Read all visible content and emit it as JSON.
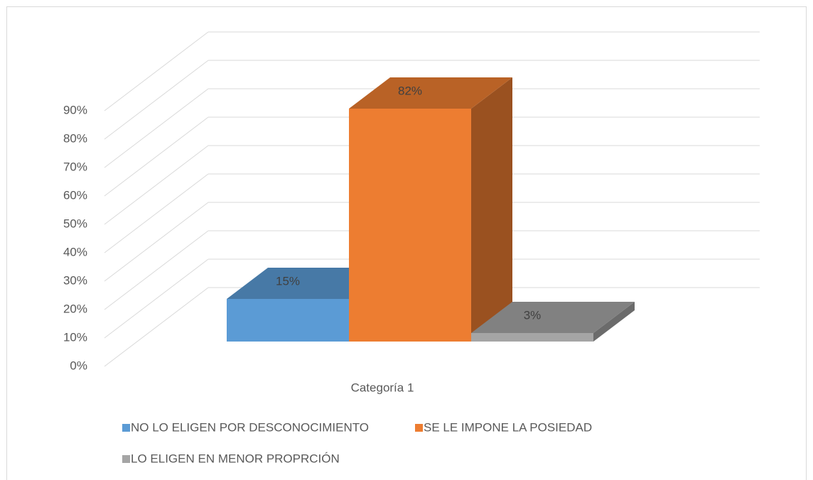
{
  "chart_data": {
    "type": "bar3d",
    "categories": [
      "Categoría 1"
    ],
    "series": [
      {
        "name": "NO LO ELIGEN POR DESCONOCIMIENTO",
        "color": "#5b9bd5",
        "values": [
          15
        ],
        "value_labels": [
          "15%"
        ]
      },
      {
        "name": "SE LE IMPONE LA POSIEDAD",
        "color": "#ed7d31",
        "values": [
          82
        ],
        "value_labels": [
          "82%"
        ]
      },
      {
        "name": "LO ELIGEN EN MENOR PROPRCIÓN",
        "color": "#a5a5a5",
        "values": [
          3
        ],
        "value_labels": [
          "3%"
        ]
      }
    ],
    "ylim": [
      0,
      90
    ],
    "yticks": [
      {
        "value": 0,
        "label": "0%"
      },
      {
        "value": 10,
        "label": "10%"
      },
      {
        "value": 20,
        "label": "20%"
      },
      {
        "value": 30,
        "label": "30%"
      },
      {
        "value": 40,
        "label": "40%"
      },
      {
        "value": 50,
        "label": "50%"
      },
      {
        "value": 60,
        "label": "60%"
      },
      {
        "value": 70,
        "label": "70%"
      },
      {
        "value": 80,
        "label": "80%"
      },
      {
        "value": 90,
        "label": "90%"
      }
    ],
    "grid": true,
    "legend": "bottom"
  }
}
